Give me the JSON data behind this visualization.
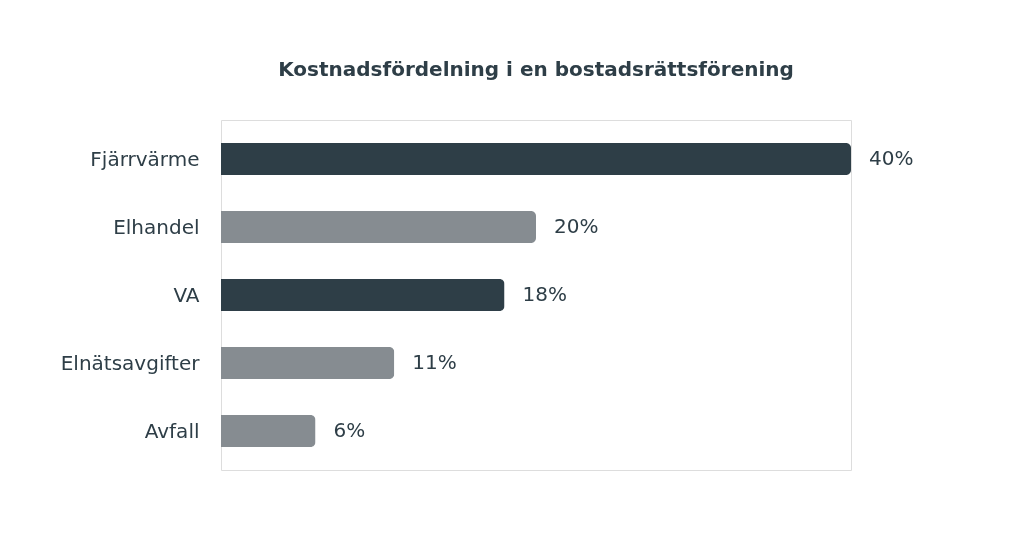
{
  "chart_data": {
    "type": "bar",
    "orientation": "horizontal",
    "title": "Kostnadsfördelning i en bostadsrättsförening",
    "categories": [
      "Fjärrvärme",
      "Elhandel",
      "VA",
      "Elnätsavgifter",
      "Avfall"
    ],
    "values": [
      40,
      20,
      18,
      11,
      6
    ],
    "colors": [
      "#2e3e47",
      "#868c91",
      "#2e3e47",
      "#868c91",
      "#868c91"
    ],
    "value_labels": [
      "40%",
      "20%",
      "18%",
      "11%",
      "6%"
    ]
  }
}
